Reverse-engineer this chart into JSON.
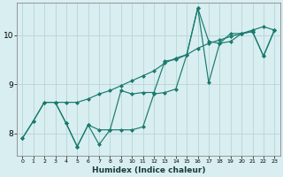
{
  "xlabel": "Humidex (Indice chaleur)",
  "bg_color": "#d8eef0",
  "line_color": "#1a7a6e",
  "grid_color": "#b8d4d8",
  "xlim": [
    -0.5,
    23.5
  ],
  "ylim": [
    7.55,
    10.65
  ],
  "yticks": [
    8,
    9,
    10
  ],
  "xticks": [
    0,
    1,
    2,
    3,
    4,
    5,
    6,
    7,
    8,
    9,
    10,
    11,
    12,
    13,
    14,
    15,
    16,
    17,
    18,
    19,
    20,
    21,
    22,
    23
  ],
  "line1_x": [
    0,
    1,
    2,
    3,
    4,
    5,
    6,
    7,
    8,
    9,
    10,
    11,
    12,
    13,
    14,
    15,
    16,
    17,
    18,
    19,
    20,
    21,
    22,
    23
  ],
  "line1_y": [
    7.9,
    8.25,
    8.63,
    8.63,
    8.2,
    7.73,
    8.17,
    7.77,
    8.07,
    8.07,
    8.07,
    8.13,
    8.8,
    8.83,
    8.9,
    9.6,
    10.55,
    9.03,
    9.83,
    9.87,
    10.03,
    10.07,
    9.57,
    10.1
  ],
  "line2_x": [
    3,
    4,
    5,
    6,
    7,
    8,
    9,
    10,
    11,
    12,
    13,
    14,
    15,
    16,
    17,
    18,
    19,
    20,
    21,
    22,
    23
  ],
  "line2_y": [
    8.63,
    8.63,
    8.63,
    8.7,
    8.8,
    8.87,
    8.97,
    9.07,
    9.17,
    9.27,
    9.43,
    9.53,
    9.6,
    9.73,
    9.83,
    9.9,
    9.97,
    10.03,
    10.1,
    10.17,
    10.1
  ],
  "line3_x": [
    0,
    1,
    2,
    3,
    4,
    5,
    6,
    7,
    8,
    9,
    10,
    11,
    12,
    13,
    14,
    15,
    16,
    17,
    18,
    19,
    20,
    21,
    22,
    23
  ],
  "line3_y": [
    7.9,
    8.25,
    8.63,
    8.63,
    8.2,
    7.73,
    8.17,
    8.07,
    8.07,
    8.87,
    8.8,
    8.83,
    8.83,
    9.47,
    9.5,
    9.6,
    10.55,
    9.87,
    9.83,
    10.03,
    10.03,
    10.07,
    9.57,
    10.1
  ]
}
